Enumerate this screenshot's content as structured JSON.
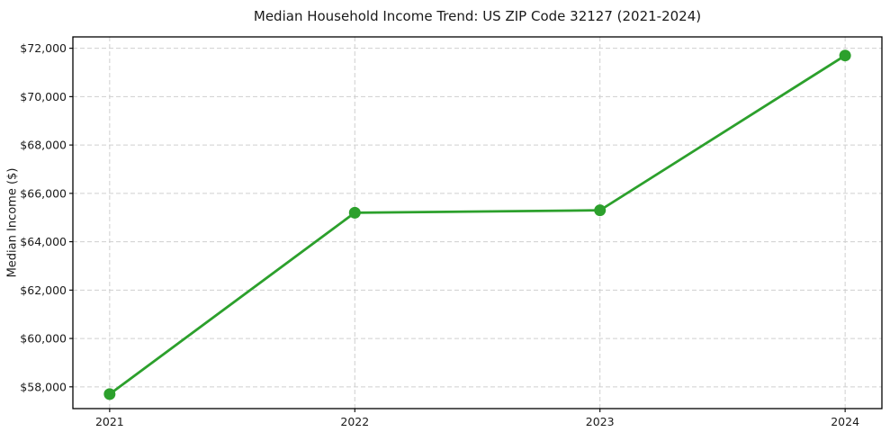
{
  "chart_data": {
    "type": "line",
    "title": "Median Household Income Trend: US ZIP Code 32127 (2021-2024)",
    "xlabel": "",
    "ylabel": "Median Income ($)",
    "x": [
      2021,
      2022,
      2023,
      2024
    ],
    "x_labels": [
      "2021",
      "2022",
      "2023",
      "2024"
    ],
    "series": [
      {
        "color": "#2ca02c",
        "values": [
          57700,
          65200,
          65300,
          71700
        ]
      }
    ],
    "xlim": [
      2020.85,
      2024.15
    ],
    "ylim": [
      57100,
      72470
    ],
    "yticks": [
      58000,
      60000,
      62000,
      64000,
      66000,
      68000,
      70000,
      72000
    ],
    "ytick_labels": [
      "$58,000",
      "$60,000",
      "$62,000",
      "$64,000",
      "$66,000",
      "$68,000",
      "$70,000",
      "$72,000"
    ],
    "ytick_prefix": "$",
    "grid": true,
    "grid_style": "dashed",
    "grid_color": "#cfcfcf",
    "axis_color": "#000000",
    "text_color": "#1a1a1a",
    "marker": "circle",
    "legend_position": "none"
  }
}
